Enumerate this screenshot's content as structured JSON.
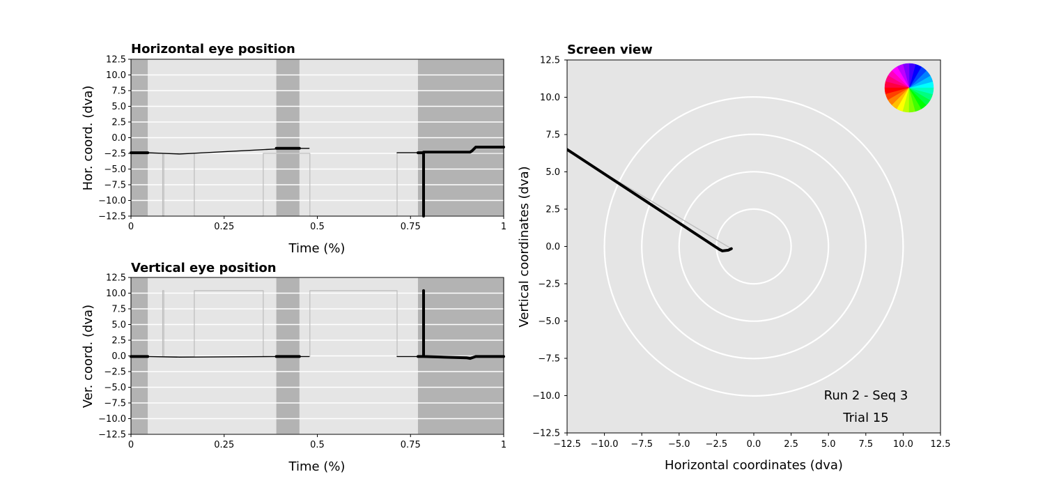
{
  "chart_data": [
    {
      "type": "line",
      "title": "Horizontal eye position",
      "xlabel": "Time (%)",
      "ylabel": "Hor. coord. (dva)",
      "xlim": [
        0,
        1
      ],
      "ylim": [
        -12.5,
        12.5
      ],
      "xticks": [
        0,
        0.25,
        0.5,
        0.75,
        1
      ],
      "xtick_labels": [
        "0",
        "0.25",
        "0.5",
        "0.75",
        "1"
      ],
      "yticks": [
        12.5,
        10.0,
        7.5,
        5.0,
        2.5,
        0.0,
        -2.5,
        -5.0,
        -7.5,
        -10.0,
        -12.5
      ],
      "ytick_labels": [
        "12.5",
        "10.0",
        "7.5",
        "5.0",
        "2.5",
        "0.0",
        "−2.5",
        "−5.0",
        "−7.5",
        "−10.0",
        "−12.5"
      ],
      "grid": "horizontal-white",
      "colors": {
        "background": "#e5e5e5",
        "shade": "#b3b3b3",
        "grid": "#ffffff",
        "trace": "#000000",
        "target": "#bdbdbd"
      },
      "shaded_intervals": [
        [
          0,
          0.045
        ],
        [
          0.39,
          0.452
        ],
        [
          0.77,
          1.0
        ]
      ],
      "series": [
        {
          "role": "target",
          "x": [
            0,
            0.085,
            0.085,
            0.088,
            0.088,
            0.17,
            0.17,
            0.355,
            0.355,
            0.48,
            0.48,
            0.714,
            0.714,
            1.0
          ],
          "y": [
            -2.5,
            -2.5,
            -12.5,
            -12.5,
            -2.5,
            -2.5,
            -12.5,
            -12.5,
            -2.5,
            -2.5,
            -12.5,
            -12.5,
            -2.4,
            -2.4
          ]
        },
        {
          "role": "gaze-line",
          "x": [
            0.045,
            0.13,
            0.39,
            0.39,
            0.478
          ],
          "y": [
            -2.4,
            -2.6,
            -1.8,
            -1.7,
            -1.7
          ]
        },
        {
          "role": "gaze-fixation",
          "x": [
            0,
            0.045
          ],
          "y": [
            -2.4,
            -2.4
          ]
        },
        {
          "role": "gaze-fixation",
          "x": [
            0.39,
            0.452
          ],
          "y": [
            -1.7,
            -1.7
          ]
        },
        {
          "role": "gaze-line",
          "x": [
            0.714,
            0.77
          ],
          "y": [
            -2.4,
            -2.4
          ]
        },
        {
          "role": "gaze-fixation",
          "x": [
            0.77,
            0.785,
            0.785,
            0.785,
            0.785,
            0.91,
            0.915,
            0.925,
            1.0
          ],
          "y": [
            -2.4,
            -2.4,
            -12.5,
            -12.5,
            -2.3,
            -2.3,
            -2.1,
            -1.5,
            -1.5
          ]
        }
      ]
    },
    {
      "type": "line",
      "title": "Vertical eye position",
      "xlabel": "Time (%)",
      "ylabel": "Ver. coord. (dva)",
      "xlim": [
        0,
        1
      ],
      "ylim": [
        -12.5,
        12.5
      ],
      "xticks": [
        0,
        0.25,
        0.5,
        0.75,
        1
      ],
      "xtick_labels": [
        "0",
        "0.25",
        "0.5",
        "0.75",
        "1"
      ],
      "yticks": [
        12.5,
        10.0,
        7.5,
        5.0,
        2.5,
        0.0,
        -2.5,
        -5.0,
        -7.5,
        -10.0,
        -12.5
      ],
      "ytick_labels": [
        "12.5",
        "10.0",
        "7.5",
        "5.0",
        "2.5",
        "0.0",
        "−2.5",
        "−5.0",
        "−7.5",
        "−10.0",
        "−12.5"
      ],
      "grid": "horizontal-white",
      "colors": {
        "background": "#e5e5e5",
        "shade": "#b3b3b3",
        "grid": "#ffffff",
        "trace": "#000000",
        "target": "#bdbdbd"
      },
      "shaded_intervals": [
        [
          0,
          0.045
        ],
        [
          0.39,
          0.452
        ],
        [
          0.77,
          1.0
        ]
      ],
      "series": [
        {
          "role": "target",
          "x": [
            0,
            0.085,
            0.085,
            0.088,
            0.088,
            0.17,
            0.17,
            0.355,
            0.355,
            0.48,
            0.48,
            0.714,
            0.714,
            1.0
          ],
          "y": [
            -0.1,
            -0.1,
            10.4,
            10.4,
            -0.1,
            -0.1,
            10.4,
            10.4,
            -0.1,
            -0.1,
            10.4,
            10.4,
            -0.1,
            -0.1
          ]
        },
        {
          "role": "gaze-line",
          "x": [
            0.045,
            0.13,
            0.39,
            0.478
          ],
          "y": [
            -0.1,
            -0.2,
            -0.1,
            -0.1
          ]
        },
        {
          "role": "gaze-fixation",
          "x": [
            0,
            0.045
          ],
          "y": [
            -0.1,
            -0.1
          ]
        },
        {
          "role": "gaze-fixation",
          "x": [
            0.39,
            0.452
          ],
          "y": [
            -0.1,
            -0.1
          ]
        },
        {
          "role": "gaze-line",
          "x": [
            0.714,
            0.77
          ],
          "y": [
            -0.1,
            -0.1
          ]
        },
        {
          "role": "gaze-fixation",
          "x": [
            0.77,
            0.785,
            0.785,
            0.785,
            0.785,
            0.9,
            0.91,
            0.925,
            1.0
          ],
          "y": [
            -0.1,
            -0.1,
            10.4,
            10.4,
            -0.1,
            -0.3,
            -0.4,
            -0.1,
            -0.1
          ]
        }
      ]
    },
    {
      "type": "scatter",
      "title": "Screen view",
      "xlabel": "Horizontal coordinates (dva)",
      "ylabel": "Vertical coordinates (dva)",
      "xlim": [
        -12.5,
        12.5
      ],
      "ylim": [
        -12.5,
        12.5
      ],
      "xticks": [
        -12.5,
        -10.0,
        -7.5,
        -5.0,
        -2.5,
        0.0,
        2.5,
        5.0,
        7.5,
        10.0,
        12.5
      ],
      "xtick_labels": [
        "−12.5",
        "−10.0",
        "−7.5",
        "−5.0",
        "−2.5",
        "0.0",
        "2.5",
        "5.0",
        "7.5",
        "10.0",
        "12.5"
      ],
      "yticks": [
        12.5,
        10.0,
        7.5,
        5.0,
        2.5,
        0.0,
        -2.5,
        -5.0,
        -7.5,
        -10.0,
        -12.5
      ],
      "ytick_labels": [
        "12.5",
        "10.0",
        "7.5",
        "5.0",
        "2.5",
        "0.0",
        "−2.5",
        "−5.0",
        "−7.5",
        "−10.0",
        "−12.5"
      ],
      "rings_radius": [
        2.5,
        5.0,
        7.5,
        10.0
      ],
      "colors": {
        "background": "#e5e5e5",
        "rings": "#ffffff",
        "trace": "#000000",
        "target": "#bdbdbd"
      },
      "target_path": {
        "x": [
          -12.5,
          -1.5
        ],
        "y": [
          6.4,
          -0.15
        ]
      },
      "gaze_path": {
        "x": [
          -12.5,
          -2.3,
          -2.1,
          -1.7,
          -1.5
        ],
        "y": [
          6.5,
          -0.2,
          -0.3,
          -0.25,
          -0.15
        ]
      },
      "annotation_lines": [
        "Run 2 - Seq 3",
        "Trial 15"
      ],
      "legend": "colour-wheel"
    }
  ]
}
